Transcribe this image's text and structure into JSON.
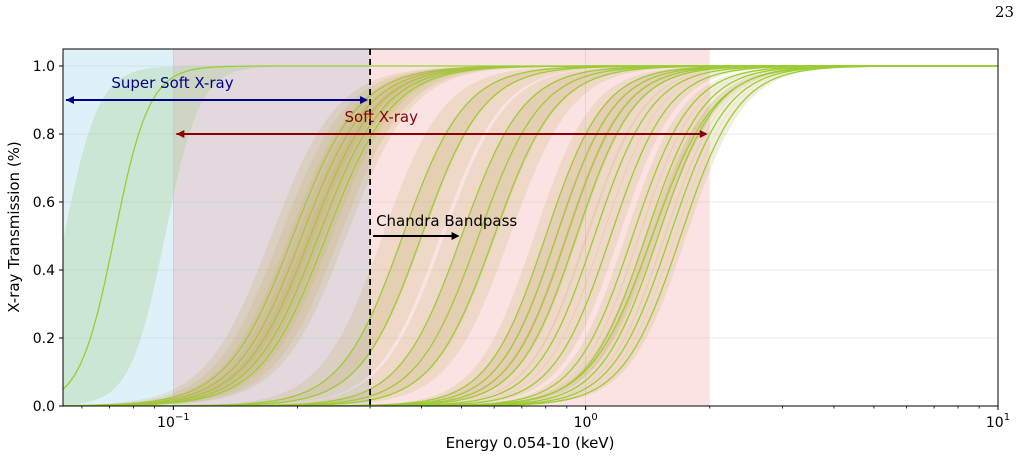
{
  "page_number": "23",
  "chart_data": {
    "type": "line",
    "xlabel": "Energy 0.054-10 (keV)",
    "ylabel": "X-ray Transmission (%)",
    "xscale": "log",
    "xlim": [
      0.054,
      10
    ],
    "ylim": [
      0,
      1.05
    ],
    "xticks": [
      {
        "value": 0.1,
        "base": "10",
        "exp": "−1"
      },
      {
        "value": 1,
        "base": "10",
        "exp": "0"
      },
      {
        "value": 10,
        "base": "10",
        "exp": "1"
      }
    ],
    "yticks": [
      {
        "value": 0.0,
        "label": "0.0"
      },
      {
        "value": 0.2,
        "label": "0.2"
      },
      {
        "value": 0.4,
        "label": "0.4"
      },
      {
        "value": 0.6,
        "label": "0.6"
      },
      {
        "value": 0.8,
        "label": "0.8"
      },
      {
        "value": 1.0,
        "label": "1.0"
      }
    ],
    "grid": true,
    "bands": [
      {
        "name": "super-soft-band",
        "x0": 0.054,
        "x1": 0.3,
        "color": "#87ceeb",
        "alpha": 0.28
      },
      {
        "name": "soft-band",
        "x0": 0.1,
        "x1": 2.0,
        "color": "#f08080",
        "alpha": 0.22
      }
    ],
    "annotations": [
      {
        "name": "super-soft-arrow",
        "text": "Super Soft X-ray",
        "x0": 0.054,
        "x1": 0.3,
        "y": 0.9,
        "color": "#00008b",
        "both_ends": true,
        "text_x": 0.1,
        "text_y": 0.935
      },
      {
        "name": "soft-arrow",
        "text": "Soft X-ray",
        "x0": 0.1,
        "x1": 2.0,
        "y": 0.8,
        "color": "#8b0000",
        "both_ends": true,
        "text_x": 0.2,
        "text_y": 0.835
      },
      {
        "name": "chandra-arrow",
        "text": "Chandra Bandpass",
        "x0": 0.3,
        "x1": 0.5,
        "y": 0.5,
        "color": "#000000",
        "both_ends": false,
        "text_x": 0.3,
        "text_y": 0.53
      }
    ],
    "vline": {
      "x": 0.3,
      "style": "dashed",
      "color": "#000000"
    },
    "curve_color": "#9acd32",
    "series": [
      {
        "mid": 0.072,
        "width": 0.042,
        "band": 0.35
      },
      {
        "mid": 0.195,
        "width": 0.08,
        "band": 0.15
      },
      {
        "mid": 0.205,
        "width": 0.08,
        "band": 0.15
      },
      {
        "mid": 0.215,
        "width": 0.08,
        "band": 0.15
      },
      {
        "mid": 0.225,
        "width": 0.08,
        "band": 0.15
      },
      {
        "mid": 0.235,
        "width": 0.08,
        "band": 0.14
      },
      {
        "mid": 0.36,
        "width": 0.075,
        "band": 0.14
      },
      {
        "mid": 0.4,
        "width": 0.075,
        "band": 0.13
      },
      {
        "mid": 0.5,
        "width": 0.075,
        "band": 0.12
      },
      {
        "mid": 0.55,
        "width": 0.075,
        "band": 0.12
      },
      {
        "mid": 0.6,
        "width": 0.075,
        "band": 0.11
      },
      {
        "mid": 0.8,
        "width": 0.07,
        "band": 0.08
      },
      {
        "mid": 0.85,
        "width": 0.07,
        "band": 0.08
      },
      {
        "mid": 0.9,
        "width": 0.07,
        "band": 0.08
      },
      {
        "mid": 0.95,
        "width": 0.07,
        "band": 0.08
      },
      {
        "mid": 1.05,
        "width": 0.07,
        "band": 0.06
      },
      {
        "mid": 1.15,
        "width": 0.07,
        "band": 0.06
      },
      {
        "mid": 1.3,
        "width": 0.07,
        "band": 0.05
      },
      {
        "mid": 1.4,
        "width": 0.07,
        "band": 0.05
      },
      {
        "mid": 1.5,
        "width": 0.07,
        "band": 0.05
      },
      {
        "mid": 1.6,
        "width": 0.07,
        "band": 0.04
      },
      {
        "mid": 1.7,
        "width": 0.07,
        "band": 0.04
      },
      {
        "mid": 1.45,
        "width": 0.075,
        "band": 0.04
      }
    ]
  }
}
